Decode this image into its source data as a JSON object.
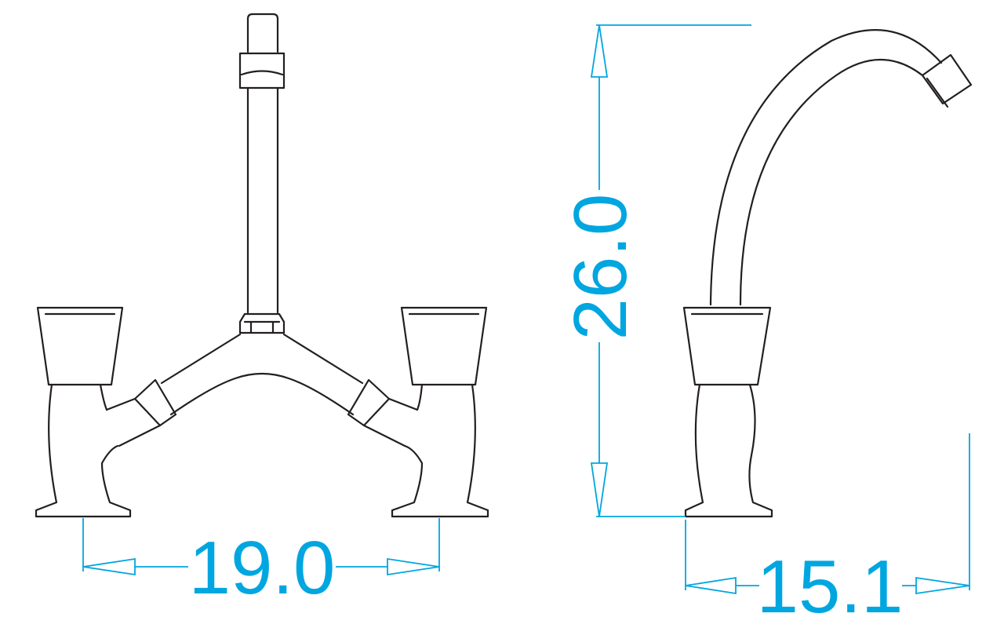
{
  "drawing": {
    "dimensions": {
      "handle_spacing": "19.0",
      "total_height": "26.0",
      "spout_reach": "15.1"
    },
    "colors": {
      "dimension": "#00a6e0",
      "outline": "#231f20",
      "background": "#ffffff"
    }
  }
}
